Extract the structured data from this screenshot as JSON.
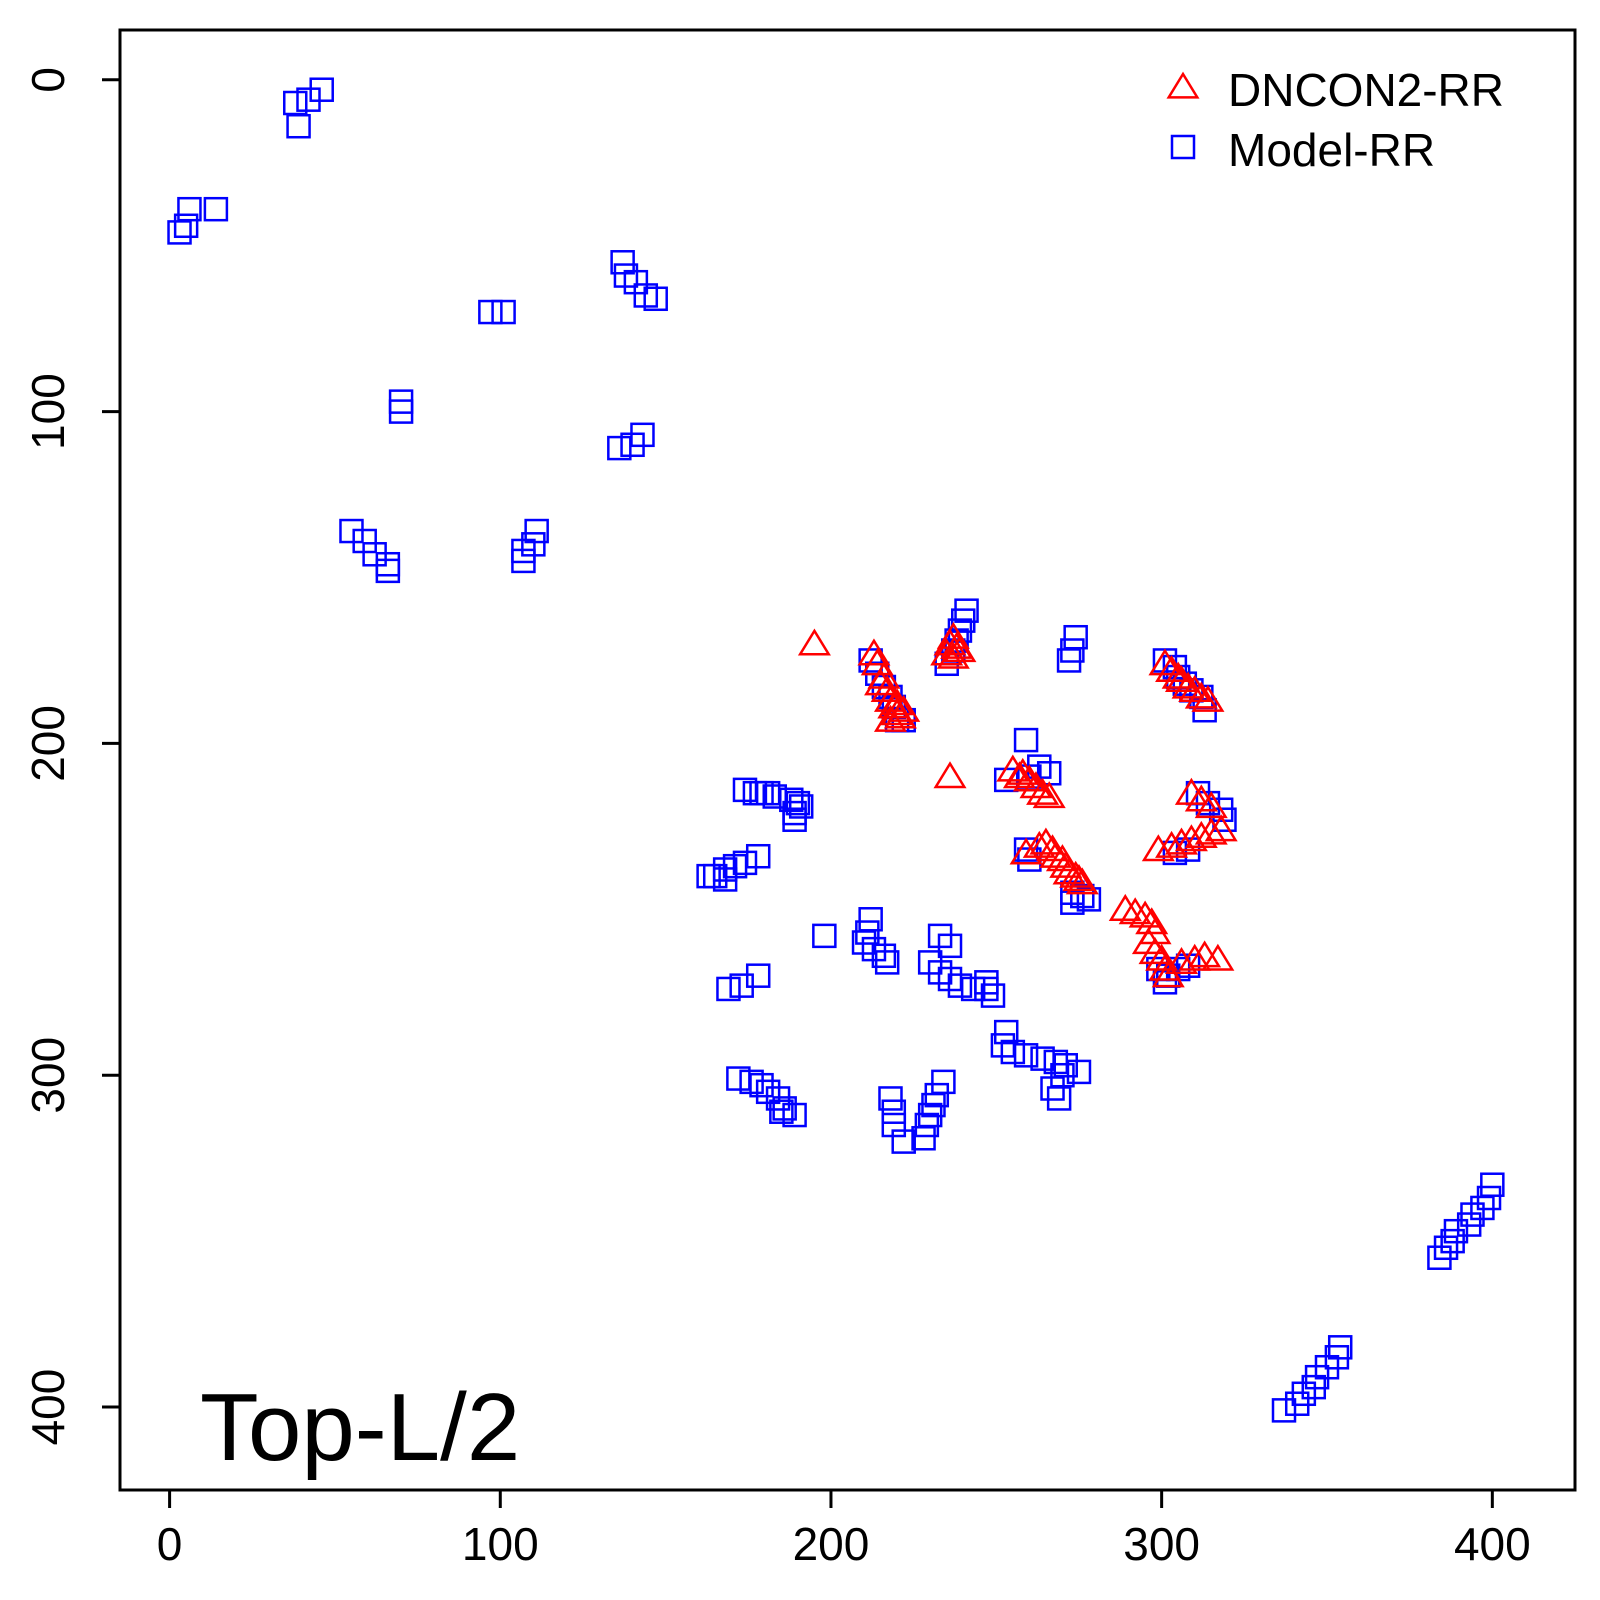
{
  "chart_data": {
    "type": "scatter",
    "title": "",
    "xlabel": "",
    "ylabel": "",
    "xlim": [
      -15,
      425
    ],
    "ylim": [
      -15,
      425
    ],
    "y_inverted": true,
    "x_ticks": [
      "0",
      "100",
      "200",
      "300",
      "400"
    ],
    "y_ticks": [
      "0",
      "100",
      "200",
      "300",
      "400"
    ],
    "annotation": "Top-L/2",
    "legend": {
      "position": "top-right"
    },
    "series": [
      {
        "name": "DNCON2-RR",
        "marker": "triangle",
        "color": "#ff0000",
        "points": [
          [
            195,
            170
          ],
          [
            213,
            173
          ],
          [
            214,
            176
          ],
          [
            216,
            180
          ],
          [
            215,
            182
          ],
          [
            217,
            184
          ],
          [
            218,
            187
          ],
          [
            219,
            189
          ],
          [
            220,
            191
          ],
          [
            221,
            192
          ],
          [
            222,
            190
          ],
          [
            220,
            188
          ],
          [
            218,
            193
          ],
          [
            235,
            173
          ],
          [
            236,
            170
          ],
          [
            237,
            168
          ],
          [
            238,
            171
          ],
          [
            239,
            172
          ],
          [
            237,
            174
          ],
          [
            236,
            210
          ],
          [
            255,
            208
          ],
          [
            257,
            210
          ],
          [
            258,
            209
          ],
          [
            260,
            211
          ],
          [
            262,
            213
          ],
          [
            264,
            215
          ],
          [
            266,
            216
          ],
          [
            259,
            233
          ],
          [
            263,
            231
          ],
          [
            265,
            230
          ],
          [
            267,
            232
          ],
          [
            268,
            234
          ],
          [
            270,
            235
          ],
          [
            271,
            237
          ],
          [
            272,
            239
          ],
          [
            274,
            240
          ],
          [
            275,
            241
          ],
          [
            276,
            242
          ],
          [
            301,
            176
          ],
          [
            303,
            178
          ],
          [
            305,
            180
          ],
          [
            306,
            181
          ],
          [
            308,
            183
          ],
          [
            310,
            184
          ],
          [
            312,
            186
          ],
          [
            314,
            187
          ],
          [
            309,
            215
          ],
          [
            312,
            217
          ],
          [
            315,
            219
          ],
          [
            299,
            232
          ],
          [
            303,
            231
          ],
          [
            306,
            230
          ],
          [
            309,
            229
          ],
          [
            312,
            228
          ],
          [
            315,
            227
          ],
          [
            318,
            226
          ],
          [
            289,
            250
          ],
          [
            292,
            251
          ],
          [
            295,
            252
          ],
          [
            297,
            254
          ],
          [
            298,
            257
          ],
          [
            296,
            260
          ],
          [
            298,
            263
          ],
          [
            300,
            265
          ],
          [
            301,
            268
          ],
          [
            302,
            270
          ],
          [
            306,
            266
          ],
          [
            310,
            265
          ],
          [
            313,
            264
          ],
          [
            317,
            265
          ]
        ]
      },
      {
        "name": "Model-RR",
        "marker": "square",
        "color": "#0000ff",
        "points": [
          [
            46,
            3
          ],
          [
            42,
            6
          ],
          [
            38,
            7
          ],
          [
            39,
            14
          ],
          [
            6,
            39
          ],
          [
            14,
            39
          ],
          [
            5,
            44
          ],
          [
            3,
            46
          ],
          [
            137,
            55
          ],
          [
            138,
            59
          ],
          [
            141,
            61
          ],
          [
            144,
            65
          ],
          [
            147,
            66
          ],
          [
            97,
            70
          ],
          [
            101,
            70
          ],
          [
            70,
            97
          ],
          [
            70,
            100
          ],
          [
            143,
            107
          ],
          [
            140,
            110
          ],
          [
            136,
            111
          ],
          [
            55,
            136
          ],
          [
            59,
            139
          ],
          [
            62,
            143
          ],
          [
            66,
            146
          ],
          [
            66,
            148
          ],
          [
            111,
            136
          ],
          [
            110,
            140
          ],
          [
            107,
            142
          ],
          [
            107,
            145
          ],
          [
            241,
            160
          ],
          [
            240,
            163
          ],
          [
            239,
            166
          ],
          [
            238,
            169
          ],
          [
            237,
            172
          ],
          [
            235,
            176
          ],
          [
            274,
            168
          ],
          [
            273,
            172
          ],
          [
            272,
            175
          ],
          [
            212,
            175
          ],
          [
            214,
            179
          ],
          [
            216,
            183
          ],
          [
            218,
            186
          ],
          [
            219,
            189
          ],
          [
            220,
            193
          ],
          [
            222,
            193
          ],
          [
            301,
            175
          ],
          [
            304,
            177
          ],
          [
            305,
            180
          ],
          [
            307,
            182
          ],
          [
            309,
            184
          ],
          [
            312,
            186
          ],
          [
            313,
            190
          ],
          [
            259,
            199
          ],
          [
            253,
            211
          ],
          [
            260,
            210
          ],
          [
            263,
            207
          ],
          [
            266,
            209
          ],
          [
            174,
            214
          ],
          [
            177,
            215
          ],
          [
            179,
            215
          ],
          [
            181,
            215
          ],
          [
            183,
            216
          ],
          [
            188,
            217
          ],
          [
            190,
            218
          ],
          [
            191,
            219
          ],
          [
            189,
            221
          ],
          [
            189,
            223
          ],
          [
            178,
            234
          ],
          [
            174,
            236
          ],
          [
            171,
            237
          ],
          [
            168,
            238
          ],
          [
            165,
            240
          ],
          [
            163,
            240
          ],
          [
            168,
            241
          ],
          [
            259,
            232
          ],
          [
            260,
            235
          ],
          [
            273,
            245
          ],
          [
            276,
            246
          ],
          [
            273,
            248
          ],
          [
            278,
            247
          ],
          [
            311,
            215
          ],
          [
            314,
            218
          ],
          [
            318,
            220
          ],
          [
            319,
            223
          ],
          [
            304,
            233
          ],
          [
            308,
            232
          ],
          [
            212,
            253
          ],
          [
            211,
            257
          ],
          [
            210,
            260
          ],
          [
            213,
            262
          ],
          [
            216,
            264
          ],
          [
            217,
            266
          ],
          [
            198,
            258
          ],
          [
            233,
            258
          ],
          [
            236,
            261
          ],
          [
            230,
            266
          ],
          [
            233,
            269
          ],
          [
            236,
            271
          ],
          [
            239,
            273
          ],
          [
            243,
            274
          ],
          [
            247,
            274
          ],
          [
            249,
            276
          ],
          [
            247,
            272
          ],
          [
            299,
            268
          ],
          [
            302,
            270
          ],
          [
            301,
            272
          ],
          [
            305,
            268
          ],
          [
            308,
            267
          ],
          [
            178,
            270
          ],
          [
            173,
            273
          ],
          [
            169,
            274
          ],
          [
            253,
            287
          ],
          [
            252,
            291
          ],
          [
            255,
            293
          ],
          [
            259,
            294
          ],
          [
            264,
            295
          ],
          [
            268,
            296
          ],
          [
            271,
            297
          ],
          [
            275,
            299
          ],
          [
            270,
            300
          ],
          [
            267,
            304
          ],
          [
            269,
            307
          ],
          [
            172,
            301
          ],
          [
            176,
            302
          ],
          [
            179,
            303
          ],
          [
            181,
            305
          ],
          [
            184,
            307
          ],
          [
            186,
            310
          ],
          [
            189,
            312
          ],
          [
            185,
            311
          ],
          [
            234,
            302
          ],
          [
            232,
            306
          ],
          [
            231,
            309
          ],
          [
            230,
            312
          ],
          [
            229,
            315
          ],
          [
            228,
            319
          ],
          [
            218,
            307
          ],
          [
            219,
            311
          ],
          [
            219,
            315
          ],
          [
            222,
            320
          ],
          [
            400,
            333
          ],
          [
            399,
            337
          ],
          [
            397,
            340
          ],
          [
            394,
            342
          ],
          [
            393,
            345
          ],
          [
            389,
            347
          ],
          [
            388,
            350
          ],
          [
            386,
            352
          ],
          [
            384,
            355
          ],
          [
            354,
            382
          ],
          [
            353,
            385
          ],
          [
            350,
            388
          ],
          [
            347,
            391
          ],
          [
            346,
            394
          ],
          [
            343,
            396
          ],
          [
            341,
            399
          ],
          [
            337,
            401
          ]
        ]
      }
    ]
  }
}
